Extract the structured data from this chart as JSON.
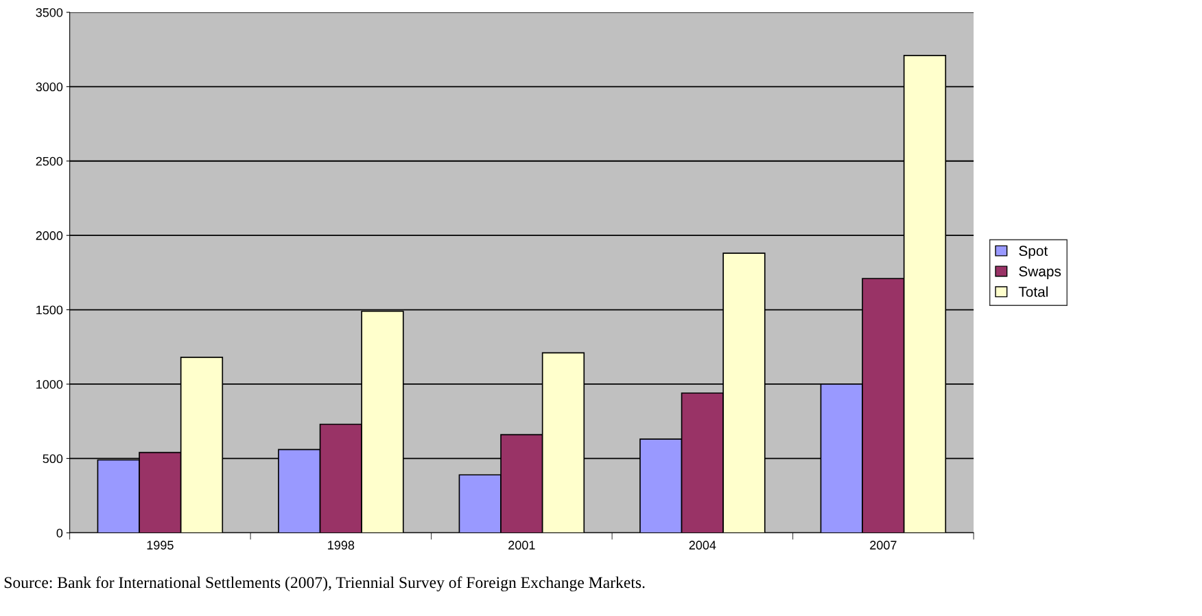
{
  "chart_data": {
    "type": "bar",
    "categories": [
      "1995",
      "1998",
      "2001",
      "2004",
      "2007"
    ],
    "series": [
      {
        "name": "Spot",
        "color": "#9999ff",
        "values": [
          490,
          560,
          390,
          630,
          1000
        ]
      },
      {
        "name": "Swaps",
        "color": "#993366",
        "values": [
          540,
          730,
          660,
          940,
          1710
        ]
      },
      {
        "name": "Total",
        "color": "#ffffcc",
        "values": [
          1180,
          1490,
          1210,
          1880,
          3210
        ]
      }
    ],
    "ylim": [
      0,
      3500
    ],
    "yticks": [
      0,
      500,
      1000,
      1500,
      2000,
      2500,
      3000,
      3500
    ],
    "grid": "y",
    "legend": "right",
    "annotations": [
      "Source: Bank for International Settlements (2007), Triennial Survey of Foreign Exchange Markets."
    ]
  }
}
